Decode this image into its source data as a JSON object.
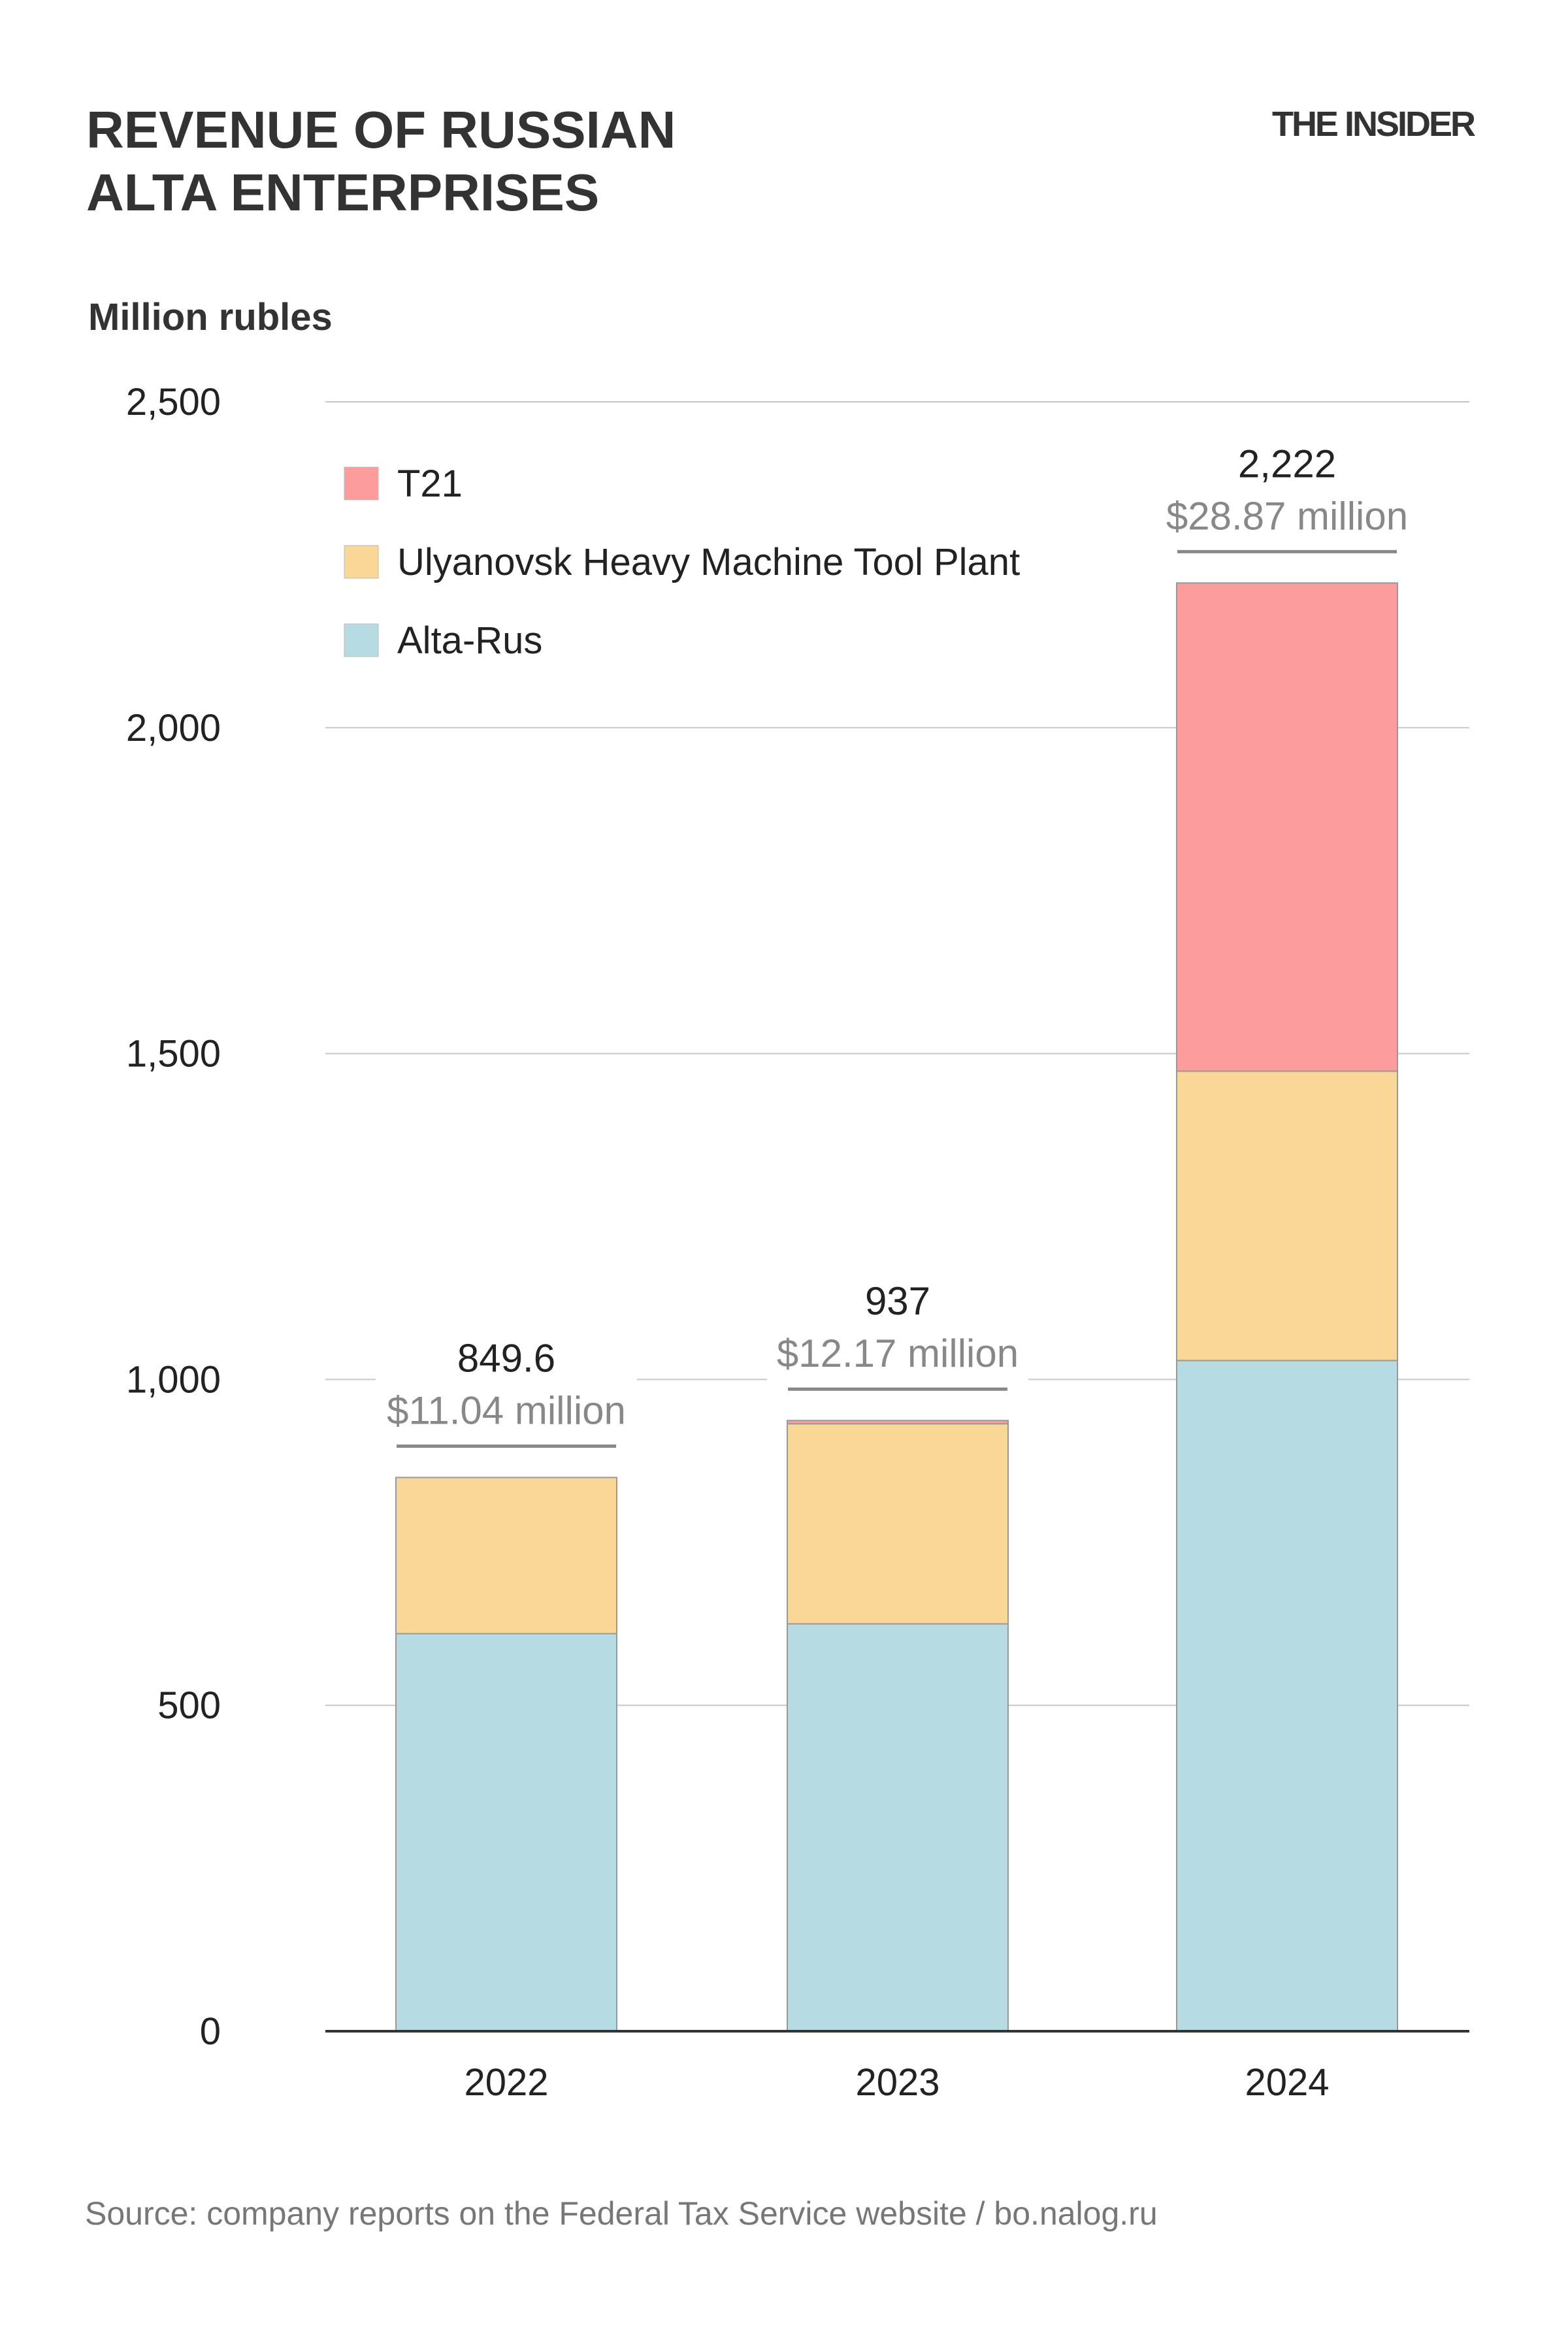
{
  "title_lines": [
    "REVENUE OF RUSSIAN",
    "ALTA ENTERPRISES"
  ],
  "logo": "THE INSIDER",
  "source": "Source: company reports on the Federal Tax Service website / bo.nalog.ru",
  "chart_data": {
    "type": "bar",
    "stacked": true,
    "ylabel": "Million rubles",
    "ylim": [
      0,
      2500
    ],
    "yticks": [
      0,
      500,
      1000,
      1500,
      2000,
      2500
    ],
    "ytick_labels": [
      "0",
      "500",
      "1,000",
      "1,500",
      "2,000",
      "2,500"
    ],
    "grid": true,
    "legend_placement": "top-left",
    "categories": [
      "2022",
      "2023",
      "2024"
    ],
    "series": [
      {
        "name": "Alta-Rus",
        "color": "#b6dbe3",
        "values": [
          610,
          625,
          1029
        ]
      },
      {
        "name": "Ulyanovsk Heavy Machine Tool Plant",
        "color": "#f9d796",
        "values": [
          239.6,
          307,
          444
        ]
      },
      {
        "name": "T21",
        "color": "#fd9c9c",
        "values": [
          0,
          5,
          749
        ]
      }
    ],
    "totals": [
      849.6,
      937,
      2222
    ],
    "total_labels": [
      "849.6",
      "937",
      "2,222"
    ],
    "usd_labels": [
      "$11.04 million",
      "$12.17 million",
      "$28.87 million"
    ]
  }
}
